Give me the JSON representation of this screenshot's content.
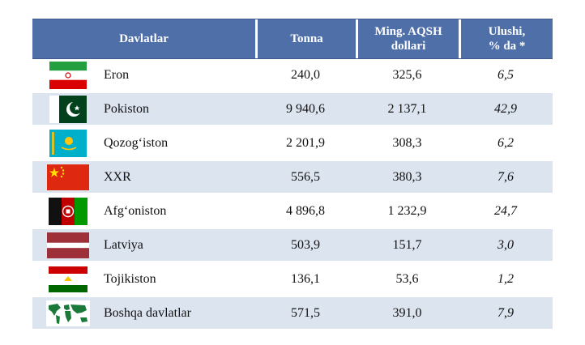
{
  "header": {
    "col_country": "Davlatlar",
    "col_tonnes": "Tonna",
    "col_value_line1": "Ming. AQSH",
    "col_value_line2": "dollari",
    "col_share_line1": "Ulushi,",
    "col_share_line2": "% da *"
  },
  "rows": [
    {
      "flag": "iran-flag-icon",
      "country": "Eron",
      "tonnes": "240,0",
      "value": "325,6",
      "share": "6,5"
    },
    {
      "flag": "pakistan-flag-icon",
      "country": "Pokiston",
      "tonnes": "9 940,6",
      "value": "2 137,1",
      "share": "42,9"
    },
    {
      "flag": "kazakhstan-flag-icon",
      "country": "Qozog‘iston",
      "tonnes": "2 201,9",
      "value": "308,3",
      "share": "6,2"
    },
    {
      "flag": "china-flag-icon",
      "country": "XXR",
      "tonnes": "556,5",
      "value": "380,3",
      "share": "7,6"
    },
    {
      "flag": "afghanistan-flag-icon",
      "country": "Afg‘oniston",
      "tonnes": "4 896,8",
      "value": "1 232,9",
      "share": "24,7"
    },
    {
      "flag": "latvia-flag-icon",
      "country": "Latviya",
      "tonnes": "503,9",
      "value": "151,7",
      "share": "3,0"
    },
    {
      "flag": "tajikistan-flag-icon",
      "country": "Tojikiston",
      "tonnes": "136,1",
      "value": "53,6",
      "share": "1,2"
    },
    {
      "flag": "world-map-icon",
      "country": "Boshqa davlatlar",
      "tonnes": "571,5",
      "value": "391,0",
      "share": "7,9"
    }
  ],
  "colors": {
    "header_bg": "#4f6fa9",
    "alt_row_bg": "#dce4f0"
  }
}
